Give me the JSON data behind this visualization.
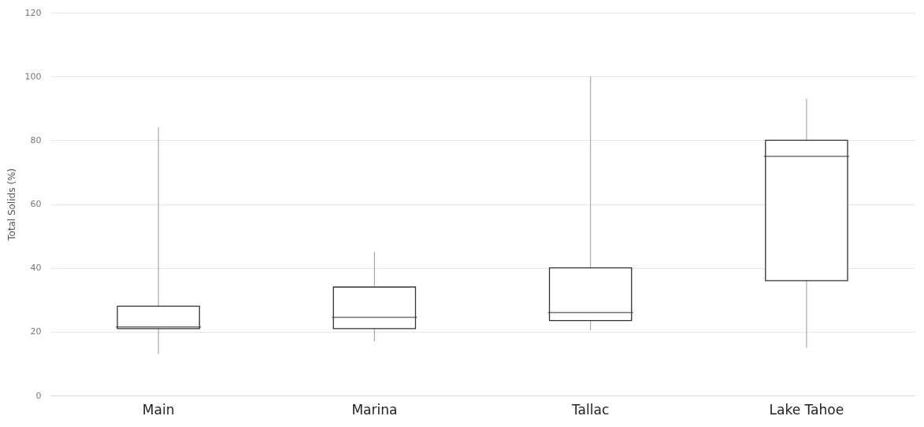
{
  "chart_data": {
    "type": "box",
    "ylabel": "Total Solids (%)",
    "categories": [
      "Main",
      "Marina",
      "Tallac",
      "Lake Tahoe"
    ],
    "boxes": [
      {
        "low": 13,
        "q1": 21,
        "median": 21.5,
        "q3": 28,
        "high": 84
      },
      {
        "low": 17,
        "q1": 21,
        "median": 24.5,
        "q3": 34,
        "high": 45
      },
      {
        "low": 20.5,
        "q1": 23.5,
        "median": 26,
        "q3": 40,
        "high": 100
      },
      {
        "low": 15,
        "q1": 36,
        "median": 75,
        "q3": 80,
        "high": 93
      }
    ],
    "ylim": [
      0,
      120
    ],
    "yticks": [
      0,
      20,
      40,
      60,
      80,
      100,
      120
    ],
    "grid": "y"
  }
}
